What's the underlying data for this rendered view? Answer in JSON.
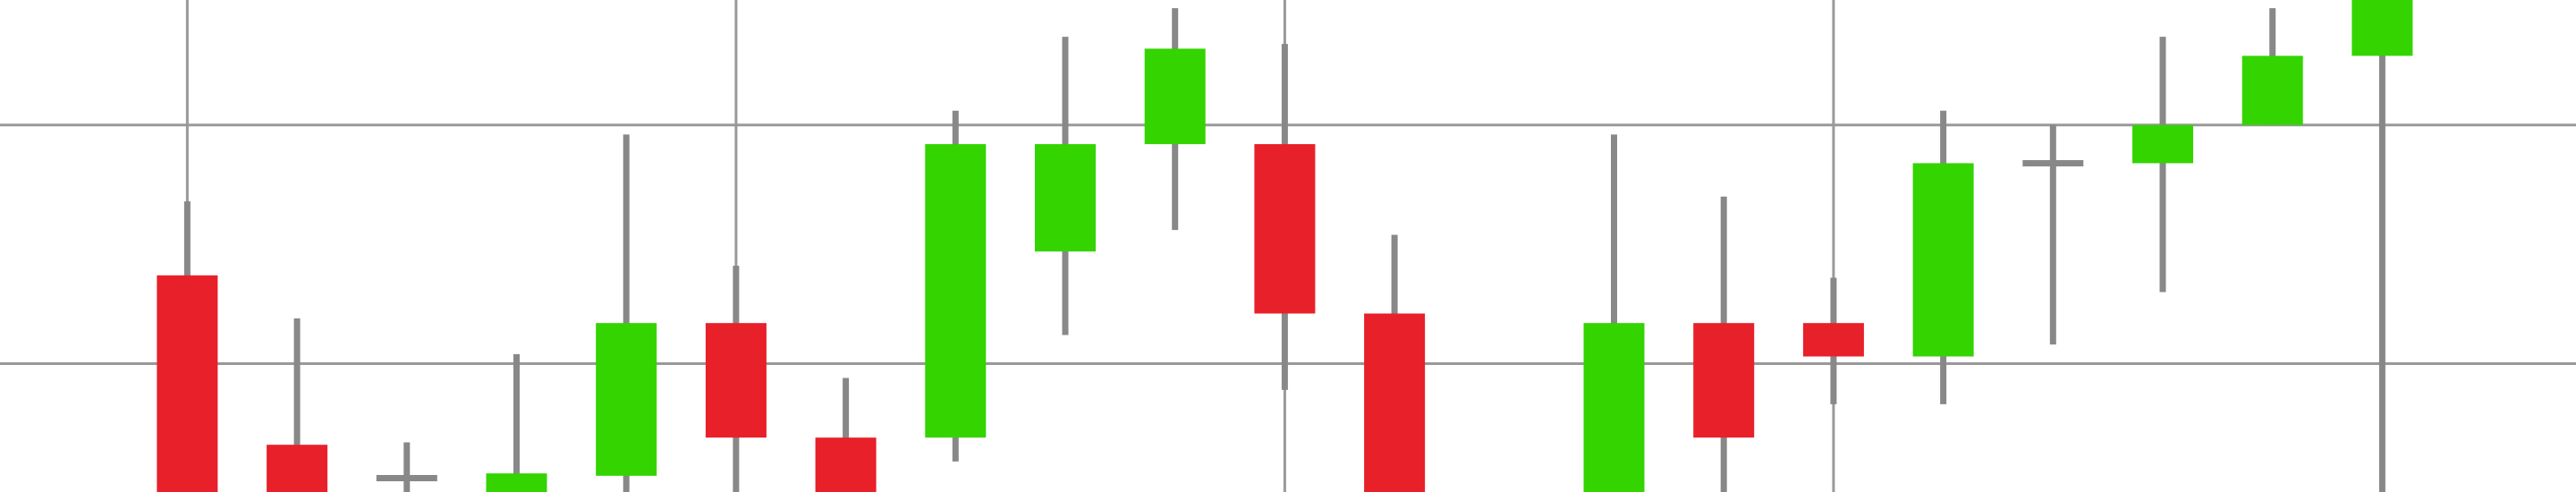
{
  "chart_data": {
    "type": "candlestick",
    "categories": [
      null,
      null,
      null,
      null,
      null,
      null,
      null,
      null,
      null,
      null,
      null,
      null,
      null,
      null,
      null,
      null,
      null,
      null,
      null,
      null,
      null
    ],
    "open": [
      3.7,
      -3.4,
      -4.8,
      -6,
      -4.7,
      1.7,
      -3.1,
      -3.1,
      4.7,
      9.2,
      9.2,
      2.1,
      null,
      -6,
      1.7,
      1.7,
      0.3,
      8.4,
      8.4,
      10,
      12.9
    ],
    "high": [
      6.8,
      1.9,
      -3.3,
      0.4,
      9.6,
      4.1,
      -0.6,
      10.6,
      13.7,
      14.9,
      13.4,
      5.4,
      null,
      9.6,
      7,
      3.6,
      10.6,
      10,
      13.7,
      14.9,
      16.5
    ],
    "low": [
      -7,
      -6.5,
      -6,
      -6.5,
      -6,
      -6,
      -6.5,
      -4.1,
      1.2,
      5.6,
      -1.1,
      -6.5,
      null,
      -6.5,
      -6,
      -1.7,
      -1.7,
      0.8,
      3,
      10,
      -6
    ],
    "close": [
      -6,
      -6,
      -4.8,
      -4.6,
      1.7,
      -3.1,
      -6,
      9.2,
      9.2,
      13.2,
      2.1,
      -6,
      null,
      1.7,
      -3.1,
      0.3,
      8.4,
      8.4,
      10,
      12.9,
      16
    ],
    "up_color": "#33d400",
    "down_color": "#e8202a",
    "wick_color": "#888888",
    "ylim": [
      -5.38,
      15.24
    ],
    "yticks": [
      0,
      10
    ],
    "grid": true
  }
}
